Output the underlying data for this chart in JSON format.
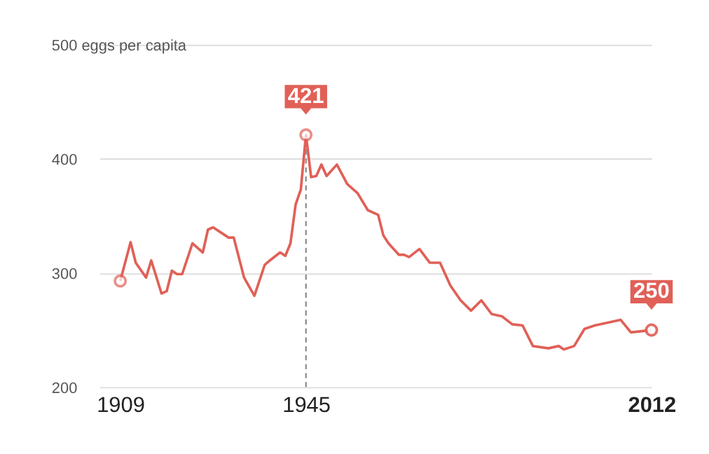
{
  "chart_data": {
    "type": "line",
    "x": [
      1909,
      1911,
      1912,
      1914,
      1915,
      1917,
      1918,
      1919,
      1920,
      1921,
      1923,
      1925,
      1926,
      1927,
      1930,
      1931,
      1933,
      1935,
      1937,
      1938,
      1940,
      1941,
      1942,
      1943,
      1944,
      1945,
      1946,
      1947,
      1948,
      1949,
      1951,
      1953,
      1955,
      1957,
      1959,
      1960,
      1961,
      1963,
      1964,
      1965,
      1967,
      1969,
      1971,
      1973,
      1975,
      1977,
      1979,
      1981,
      1983,
      1985,
      1987,
      1989,
      1992,
      1994,
      1995,
      1997,
      1999,
      2001,
      2004,
      2006,
      2008,
      2012
    ],
    "series": [
      {
        "color": "#e06057",
        "values": [
          293,
          327,
          309,
          296,
          311,
          282,
          284,
          302,
          299,
          299,
          326,
          318,
          338,
          340,
          331,
          331,
          296,
          280,
          307,
          311,
          318,
          315,
          326,
          360,
          373,
          421,
          384,
          385,
          395,
          385,
          395,
          378,
          370,
          355,
          351,
          333,
          326,
          316,
          316,
          314,
          321,
          309,
          309,
          289,
          276,
          267,
          276,
          264,
          262,
          255,
          254,
          236,
          234,
          236,
          233,
          236,
          251,
          254,
          257,
          259,
          248,
          250
        ]
      }
    ],
    "xlim": [
      1905,
      2012
    ],
    "xticks": [
      1909,
      1945,
      2012
    ],
    "ylim": [
      200,
      500
    ],
    "yticks": [
      200,
      300,
      400,
      {
        "value": 500,
        "label": "500 eggs per capita"
      }
    ],
    "grid": "y",
    "annotations": [
      {
        "text": "421",
        "x": 1945,
        "y": 421
      },
      {
        "text": "250",
        "x": 2012,
        "y": 250
      }
    ],
    "ref_lines": [
      {
        "axis": "x",
        "value": 1945,
        "label": null,
        "line_style": "dashed",
        "color": "#888888"
      }
    ]
  }
}
